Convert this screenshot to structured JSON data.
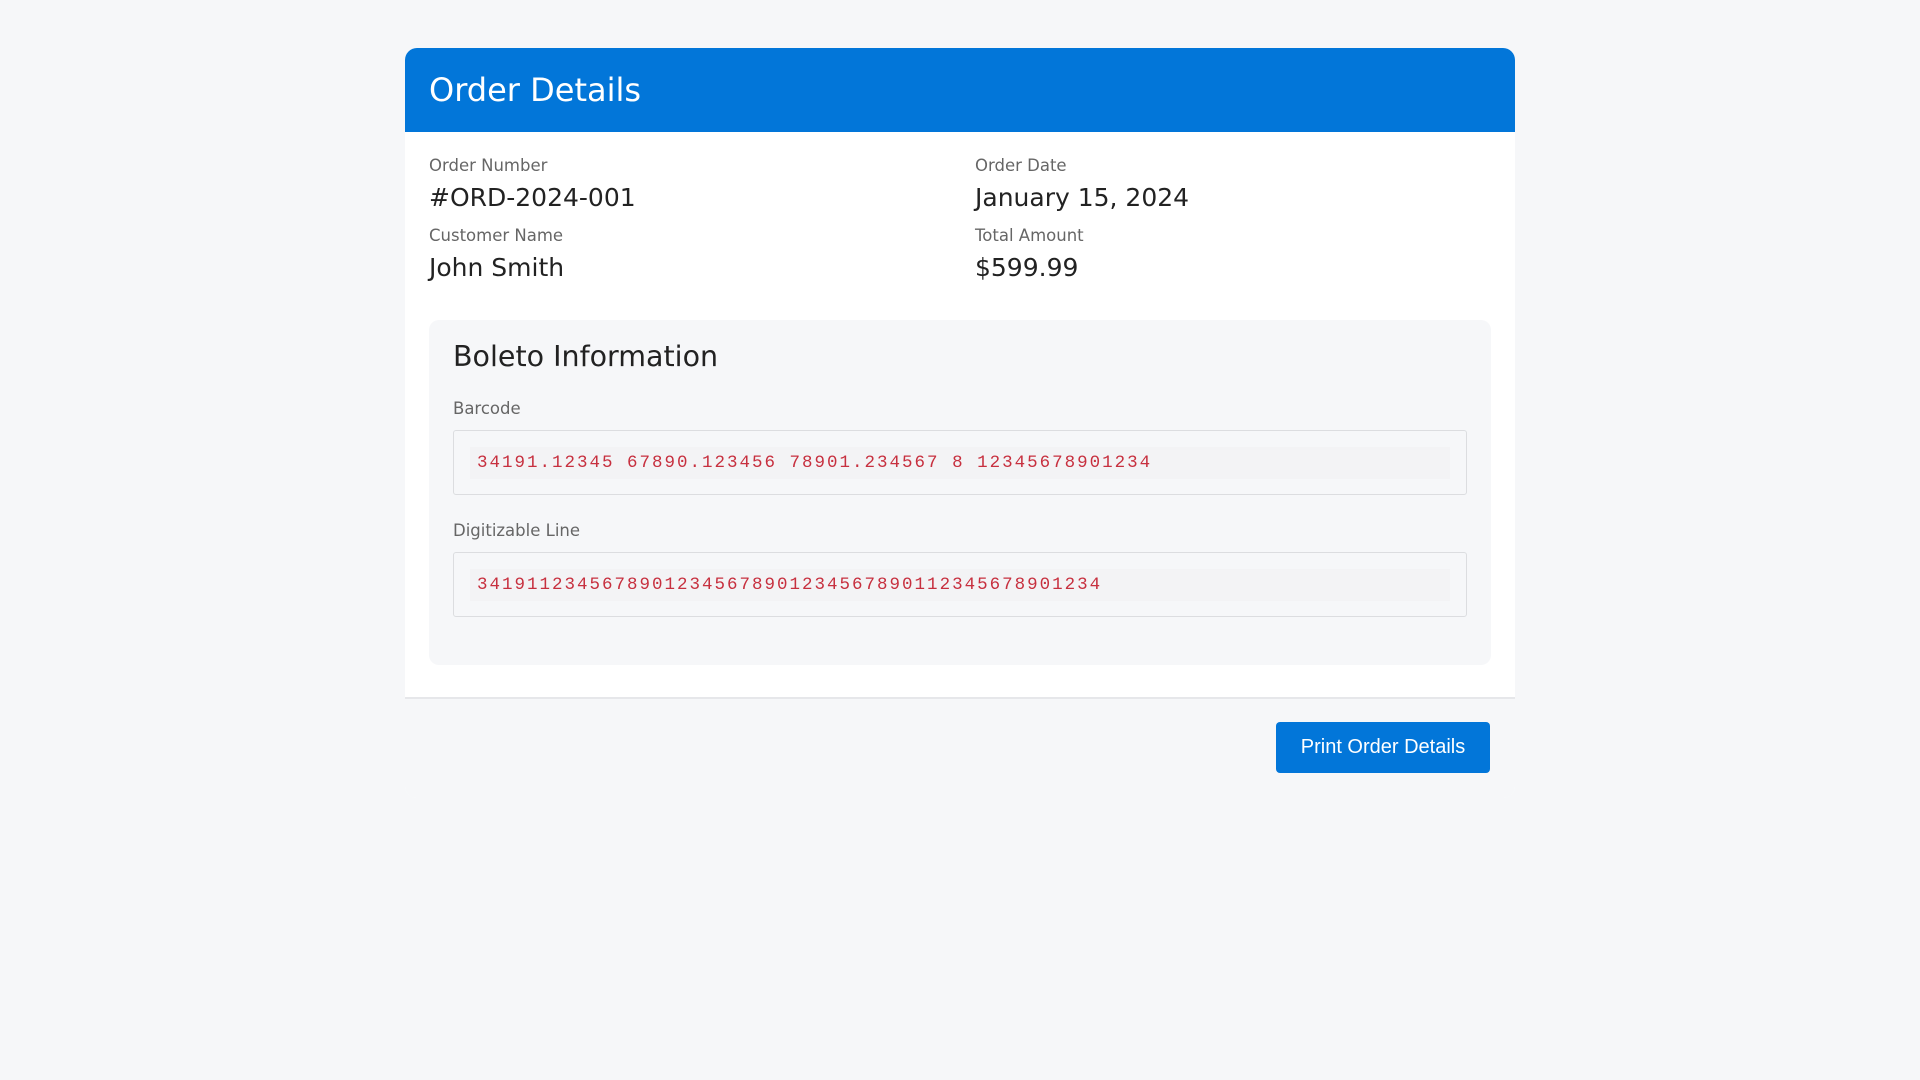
{
  "header": {
    "title": "Order Details"
  },
  "order": {
    "number_label": "Order Number",
    "number": "#ORD-2024-001",
    "date_label": "Order Date",
    "date": "January 15, 2024",
    "customer_label": "Customer Name",
    "customer": "John Smith",
    "total_label": "Total Amount",
    "total": "$599.99"
  },
  "boleto": {
    "title": "Boleto Information",
    "barcode_label": "Barcode",
    "barcode": "34191.12345 67890.123456 78901.234567 8 12345678901234",
    "digitizable_label": "Digitizable Line",
    "digitizable": "34191123456789012345678901234567890112345678901234"
  },
  "footer": {
    "print_label": "Print Order Details"
  },
  "colors": {
    "primary": "#0276d9",
    "code_text": "#c7303f",
    "background": "#f6f7f9"
  }
}
